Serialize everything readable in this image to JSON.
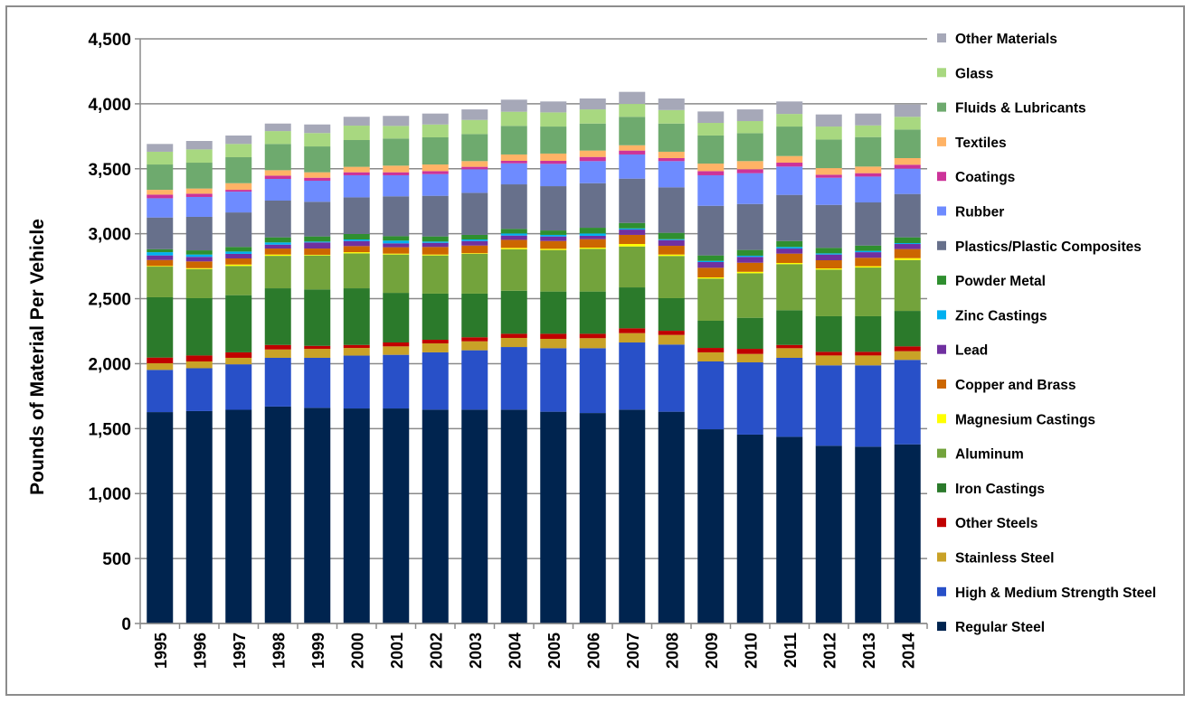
{
  "chart_data": {
    "type": "bar",
    "stacked": true,
    "title": "",
    "xlabel": "",
    "ylabel": "Pounds of Material Per Vehicle",
    "ylim": [
      0,
      4500
    ],
    "yticks": [
      "0",
      "500",
      "1,000",
      "1,500",
      "2,000",
      "2,500",
      "3,000",
      "3,500",
      "4,000",
      "4,500"
    ],
    "ytick_values": [
      0,
      500,
      1000,
      1500,
      2000,
      2500,
      3000,
      3500,
      4000,
      4500
    ],
    "grid": true,
    "legend_position": "right",
    "categories": [
      "1995",
      "1996",
      "1997",
      "1998",
      "1999",
      "2000",
      "2001",
      "2002",
      "2003",
      "2004",
      "2005",
      "2006",
      "2007",
      "2008",
      "2009",
      "2010",
      "2011",
      "2012",
      "2013",
      "2014"
    ],
    "series": [
      {
        "name": "Regular Steel",
        "color": "#00244f",
        "values": [
          1627,
          1635,
          1645,
          1670,
          1660,
          1655,
          1655,
          1646,
          1646,
          1646,
          1630,
          1620,
          1646,
          1630,
          1495,
          1454,
          1437,
          1368,
          1361,
          1379
        ]
      },
      {
        "name": "High & Medium Strength Steel",
        "color": "#2850c8",
        "values": [
          325,
          330,
          350,
          375,
          385,
          407,
          413,
          441,
          457,
          482,
          489,
          499,
          517,
          517,
          522,
          556,
          608,
          619,
          626,
          650
        ]
      },
      {
        "name": "Stainless Steel",
        "color": "#c9a227",
        "values": [
          51,
          52,
          50,
          64,
          69,
          59,
          65,
          69,
          69,
          70,
          72,
          77,
          72,
          74,
          70,
          65,
          74,
          76,
          76,
          67
        ]
      },
      {
        "name": "Other Steels",
        "color": "#c00000",
        "values": [
          44,
          46,
          42,
          35,
          23,
          23,
          30,
          28,
          31,
          32,
          39,
          34,
          37,
          32,
          34,
          39,
          25,
          28,
          28,
          37
        ]
      },
      {
        "name": "Iron Castings",
        "color": "#2b7a2b",
        "values": [
          464,
          441,
          440,
          436,
          434,
          436,
          382,
          355,
          336,
          331,
          325,
          325,
          315,
          251,
          209,
          239,
          267,
          274,
          274,
          273
        ]
      },
      {
        "name": "Aluminum",
        "color": "#73a33c",
        "values": [
          236,
          224,
          225,
          250,
          262,
          269,
          295,
          294,
          306,
          320,
          320,
          329,
          315,
          325,
          325,
          343,
          355,
          359,
          375,
          392
        ]
      },
      {
        "name": "Magnesium Castings",
        "color": "#ffff00",
        "values": [
          5,
          7,
          11,
          10,
          5,
          9,
          7,
          7,
          5,
          10,
          9,
          9,
          19,
          11,
          9,
          11,
          9,
          9,
          10,
          14
        ]
      },
      {
        "name": "Copper and Brass",
        "color": "#cc6600",
        "values": [
          46,
          52,
          47,
          46,
          48,
          47,
          49,
          58,
          59,
          62,
          60,
          65,
          70,
          67,
          74,
          70,
          72,
          63,
          65,
          70
        ]
      },
      {
        "name": "Lead",
        "color": "#7030a0",
        "values": [
          35,
          35,
          35,
          30,
          47,
          39,
          30,
          32,
          35,
          33,
          35,
          26,
          41,
          44,
          44,
          45,
          39,
          44,
          43,
          39
        ]
      },
      {
        "name": "Zinc Castings",
        "color": "#00b0f0",
        "values": [
          25,
          18,
          18,
          17,
          7,
          12,
          21,
          10,
          12,
          16,
          12,
          18,
          9,
          7,
          9,
          9,
          12,
          9,
          10,
          7
        ]
      },
      {
        "name": "Powder Metal",
        "color": "#2f8f2f",
        "values": [
          23,
          32,
          35,
          39,
          39,
          42,
          34,
          39,
          35,
          35,
          34,
          44,
          42,
          49,
          42,
          44,
          46,
          42,
          41,
          44
        ]
      },
      {
        "name": "Plastics/Plastic Composites",
        "color": "#67708b",
        "values": [
          244,
          258,
          266,
          283,
          267,
          282,
          307,
          313,
          324,
          343,
          341,
          343,
          341,
          350,
          382,
          354,
          355,
          331,
          332,
          334
        ]
      },
      {
        "name": "Rubber",
        "color": "#6e8bff",
        "values": [
          148,
          153,
          160,
          167,
          162,
          170,
          162,
          167,
          181,
          162,
          172,
          170,
          186,
          202,
          235,
          237,
          218,
          209,
          199,
          195
        ]
      },
      {
        "name": "Coatings",
        "color": "#cc3399",
        "values": [
          28,
          25,
          14,
          25,
          23,
          23,
          23,
          23,
          19,
          19,
          23,
          32,
          30,
          23,
          32,
          30,
          30,
          23,
          26,
          30
        ]
      },
      {
        "name": "Textiles",
        "color": "#ffb366",
        "values": [
          37,
          40,
          51,
          42,
          42,
          42,
          51,
          51,
          44,
          49,
          56,
          49,
          41,
          49,
          58,
          63,
          51,
          51,
          51,
          51
        ]
      },
      {
        "name": "Fluids & Lubricants",
        "color": "#6eaa6e",
        "values": [
          195,
          199,
          200,
          202,
          199,
          206,
          209,
          209,
          208,
          220,
          208,
          208,
          219,
          217,
          216,
          215,
          227,
          220,
          227,
          220
        ]
      },
      {
        "name": "Glass",
        "color": "#a8d880",
        "values": [
          98,
          102,
          102,
          99,
          103,
          111,
          97,
          99,
          109,
          109,
          109,
          109,
          99,
          104,
          97,
          93,
          97,
          100,
          90,
          98
        ]
      },
      {
        "name": "Other Materials",
        "color": "#a6a8b8",
        "values": [
          60,
          65,
          65,
          58,
          66,
          68,
          77,
          84,
          81,
          93,
          84,
          84,
          93,
          89,
          88,
          90,
          96,
          93,
          91,
          94
        ]
      }
    ]
  }
}
